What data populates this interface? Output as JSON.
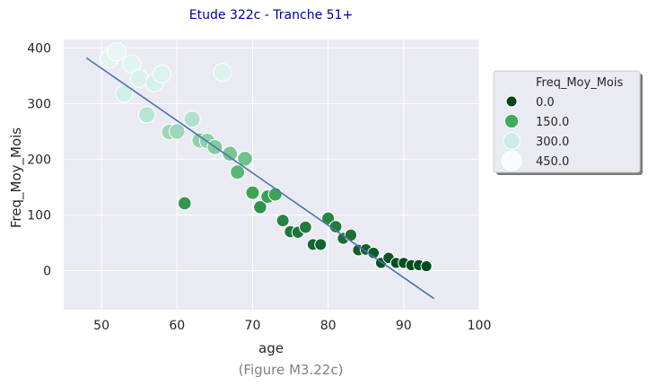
{
  "chart_data": {
    "type": "scatter",
    "title": "Etude 322c - Tranche 51+",
    "caption": "(Figure M3.22c)",
    "xlabel": "age",
    "ylabel": "Freq_Moy_Mois",
    "xlim": [
      45,
      100
    ],
    "ylim": [
      -70,
      415
    ],
    "xticks": [
      50,
      60,
      70,
      80,
      90,
      100
    ],
    "yticks": [
      0,
      100,
      200,
      300,
      400
    ],
    "grid": true,
    "legend": {
      "title": "Freq_Moy_Mois",
      "placement": "right",
      "entries": [
        {
          "label": "0.0",
          "value": 0
        },
        {
          "label": "150.0",
          "value": 150
        },
        {
          "label": "300.0",
          "value": 300
        },
        {
          "label": "450.0",
          "value": 450
        }
      ]
    },
    "colors": {
      "background": "#eaeaf2",
      "grid": "#ffffff",
      "trend_line": "#4c72b0",
      "palette_dark": "#00441b",
      "palette_mid": "#41ab5d",
      "palette_light": "#ccece6",
      "palette_lightest": "#f7fcfd"
    },
    "trend_line": {
      "x": [
        48,
        94
      ],
      "y": [
        382,
        -50
      ]
    },
    "points": [
      {
        "x": 51,
        "y": 380
      },
      {
        "x": 52,
        "y": 393
      },
      {
        "x": 53,
        "y": 318
      },
      {
        "x": 54,
        "y": 371
      },
      {
        "x": 55,
        "y": 345
      },
      {
        "x": 56,
        "y": 280
      },
      {
        "x": 57,
        "y": 337
      },
      {
        "x": 58,
        "y": 353
      },
      {
        "x": 59,
        "y": 249
      },
      {
        "x": 60,
        "y": 250
      },
      {
        "x": 61,
        "y": 121
      },
      {
        "x": 62,
        "y": 272
      },
      {
        "x": 63,
        "y": 234
      },
      {
        "x": 64,
        "y": 233
      },
      {
        "x": 65,
        "y": 222
      },
      {
        "x": 66,
        "y": 356
      },
      {
        "x": 67,
        "y": 210
      },
      {
        "x": 68,
        "y": 177
      },
      {
        "x": 69,
        "y": 201
      },
      {
        "x": 70,
        "y": 140
      },
      {
        "x": 71,
        "y": 114
      },
      {
        "x": 72,
        "y": 133
      },
      {
        "x": 73,
        "y": 137
      },
      {
        "x": 74,
        "y": 90
      },
      {
        "x": 75,
        "y": 70
      },
      {
        "x": 76,
        "y": 69
      },
      {
        "x": 77,
        "y": 78
      },
      {
        "x": 78,
        "y": 47
      },
      {
        "x": 79,
        "y": 47
      },
      {
        "x": 80,
        "y": 94
      },
      {
        "x": 81,
        "y": 79
      },
      {
        "x": 82,
        "y": 58
      },
      {
        "x": 83,
        "y": 64
      },
      {
        "x": 84,
        "y": 37
      },
      {
        "x": 85,
        "y": 38
      },
      {
        "x": 86,
        "y": 32
      },
      {
        "x": 87,
        "y": 14
      },
      {
        "x": 88,
        "y": 23
      },
      {
        "x": 89,
        "y": 14
      },
      {
        "x": 90,
        "y": 14
      },
      {
        "x": 91,
        "y": 10
      },
      {
        "x": 92,
        "y": 10
      },
      {
        "x": 93,
        "y": 8
      }
    ]
  }
}
